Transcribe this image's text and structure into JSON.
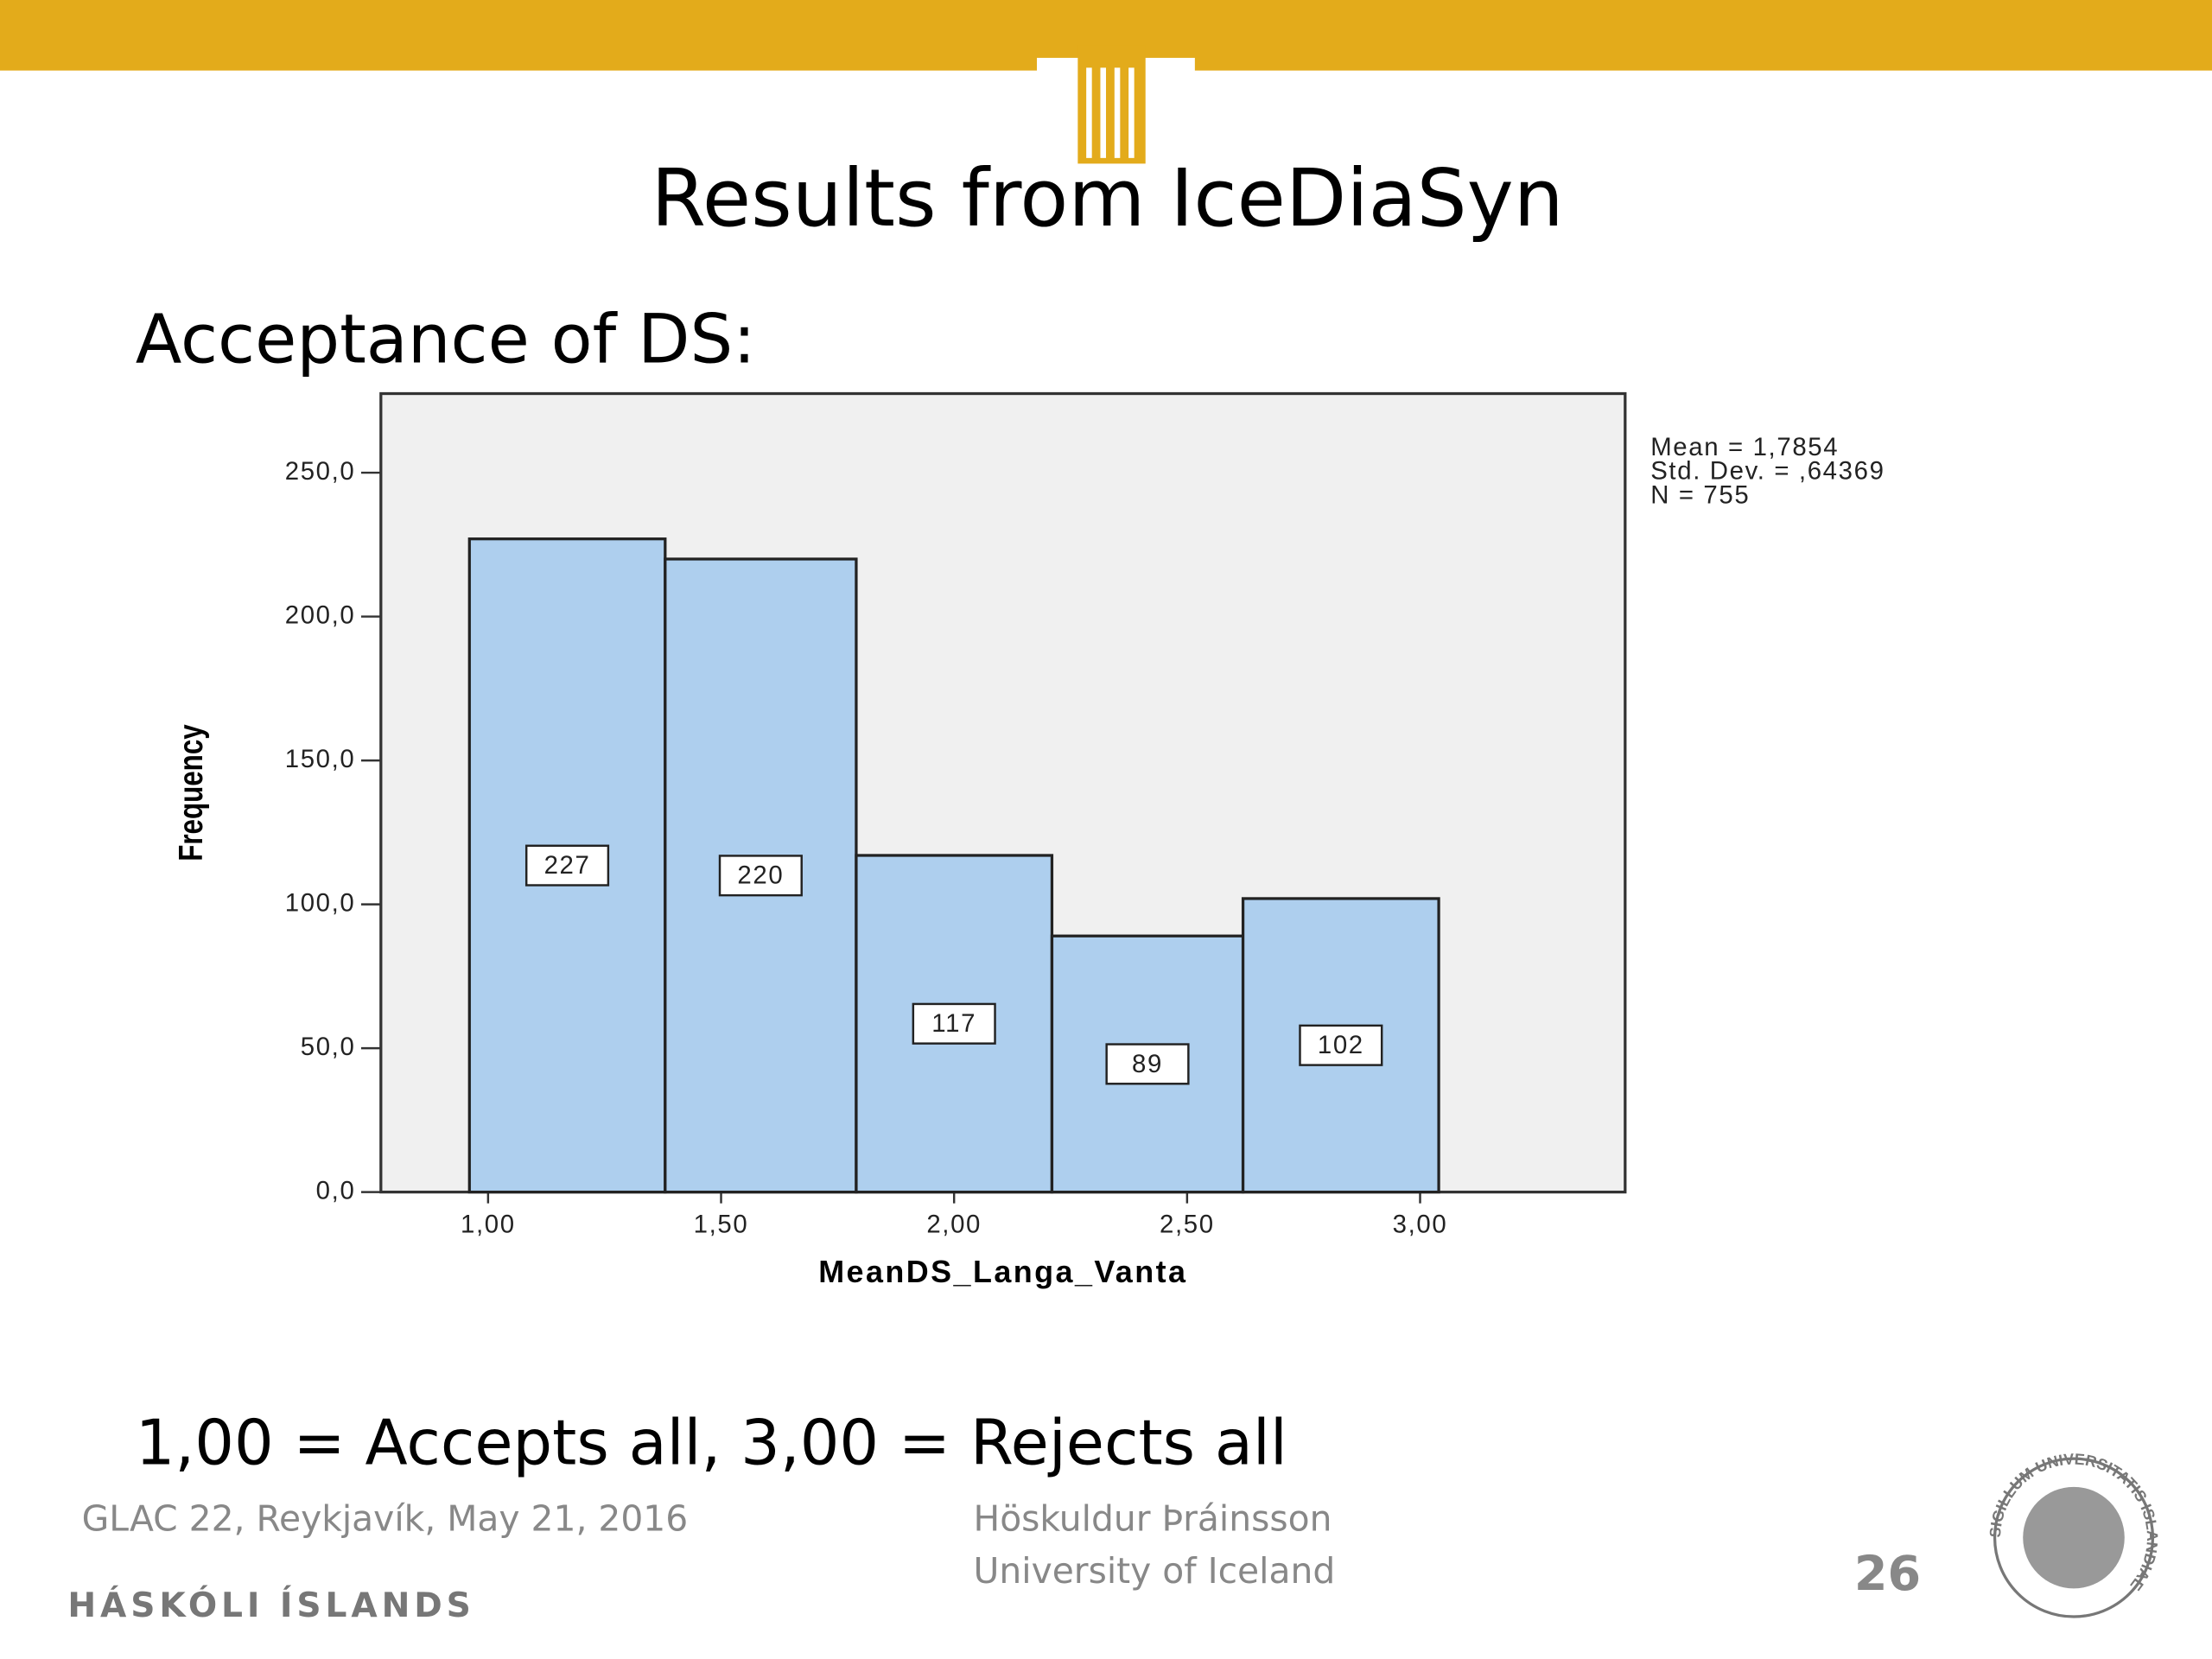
{
  "header": {
    "title": "Results from IceDiaSyn"
  },
  "subtitle": "Acceptance of DS:",
  "note": "1,00 = Accepts all, 3,00 = Rejects all",
  "footer": {
    "event": "GLAC 22, Reykjavík, May 21, 2016",
    "author": "Höskuldur Þráinsson",
    "affiliation": "University of Iceland",
    "page": "26",
    "institution": "HÁSKÓLI ÍSLANDS",
    "seal": "SIGILLUM UNIVERSITATIS ISLANDIAE"
  },
  "chart_data": {
    "type": "histogram",
    "bins": [
      0.96,
      1.38,
      1.79,
      2.21,
      2.62,
      3.04
    ],
    "values": [
      227,
      220,
      117,
      89,
      102
    ],
    "color": "#aecfee",
    "xlabel": "MeanDS_Langa_Vanta",
    "ylabel": "Frequency",
    "xlim": [
      0.77,
      3.44
    ],
    "ylim": [
      0,
      277.5
    ],
    "xticks": [
      {
        "value": 1,
        "label": "1,00"
      },
      {
        "value": 1.5,
        "label": "1,50"
      },
      {
        "value": 2,
        "label": "2,00"
      },
      {
        "value": 2.5,
        "label": "2,50"
      },
      {
        "value": 3,
        "label": "3,00"
      }
    ],
    "yticks": [
      {
        "value": 0,
        "label": "0,0"
      },
      {
        "value": 50,
        "label": "50,0"
      },
      {
        "value": 100,
        "label": "100,0"
      },
      {
        "value": 150,
        "label": "150,0"
      },
      {
        "value": 200,
        "label": "200,0"
      },
      {
        "value": 250,
        "label": "250,0"
      }
    ],
    "annotations": [
      "Mean = 1,7854",
      "Std. Dev. = ,64369",
      "N = 755"
    ]
  }
}
